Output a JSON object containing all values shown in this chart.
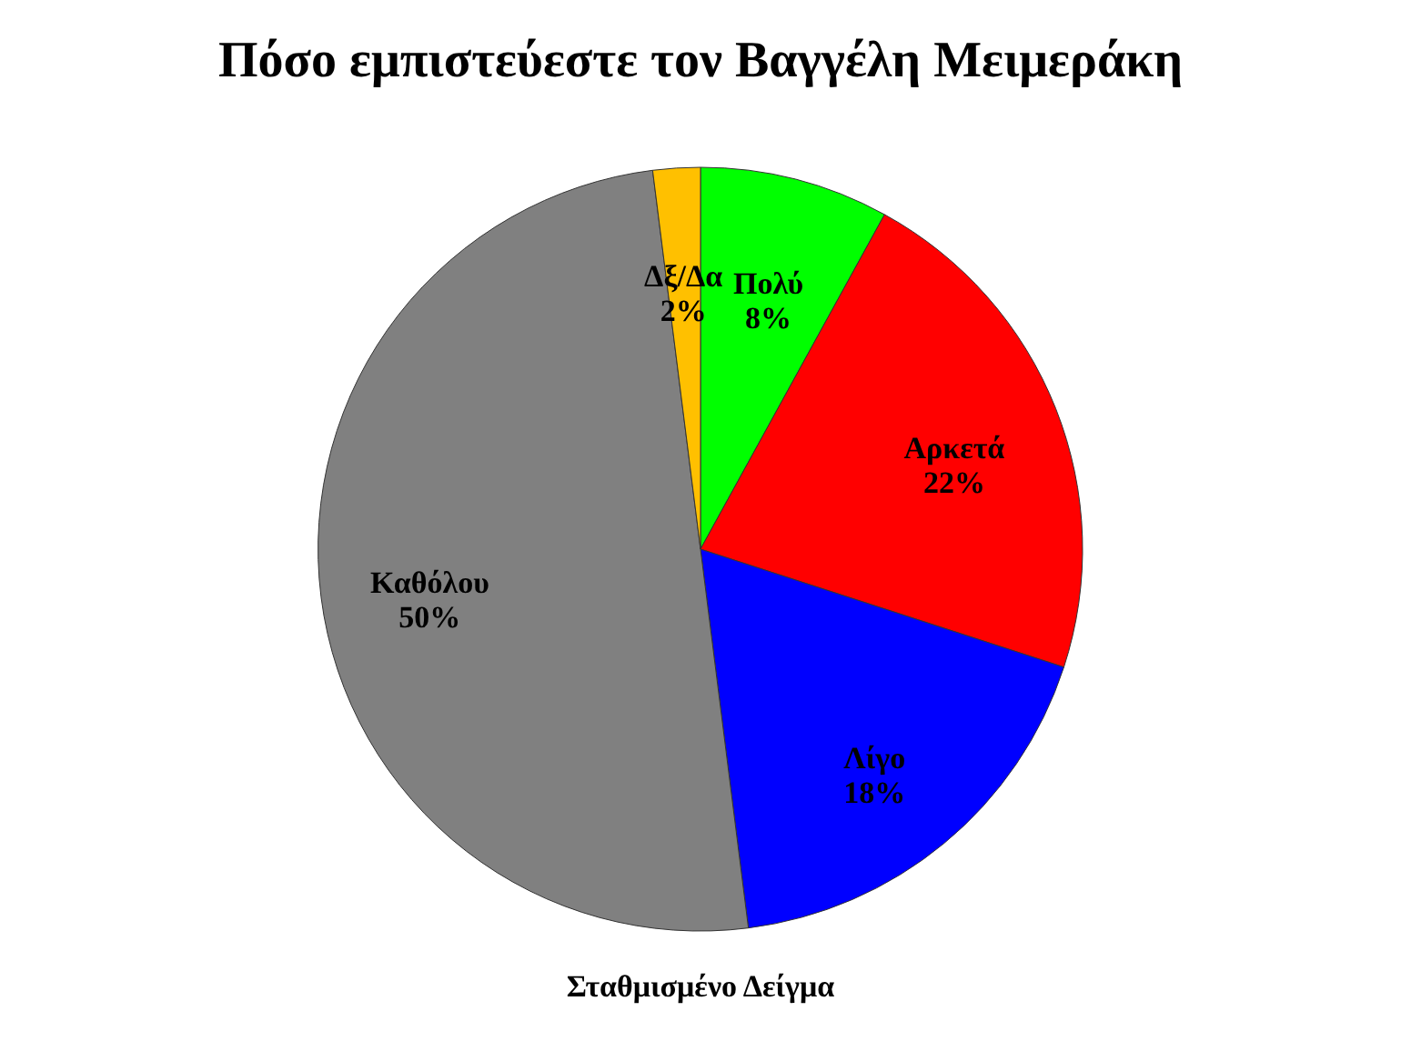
{
  "chart_data": {
    "type": "pie",
    "title": "Πόσο εμπιστεύεστε τον Βαγγέλη Μειμεράκη",
    "categories": [
      "Πολύ",
      "Αρκετά",
      "Λίγο",
      "Καθόλου",
      "Δξ/Δα"
    ],
    "values": [
      8,
      22,
      18,
      50,
      2
    ],
    "value_labels": [
      "8%",
      "22%",
      "18%",
      "50%",
      "2%"
    ],
    "colors": [
      "#00ff00",
      "#ff0000",
      "#0000ff",
      "#808080",
      "#ffc000"
    ],
    "annotations": [
      "Σταθμισμένο Δείγμα"
    ]
  }
}
